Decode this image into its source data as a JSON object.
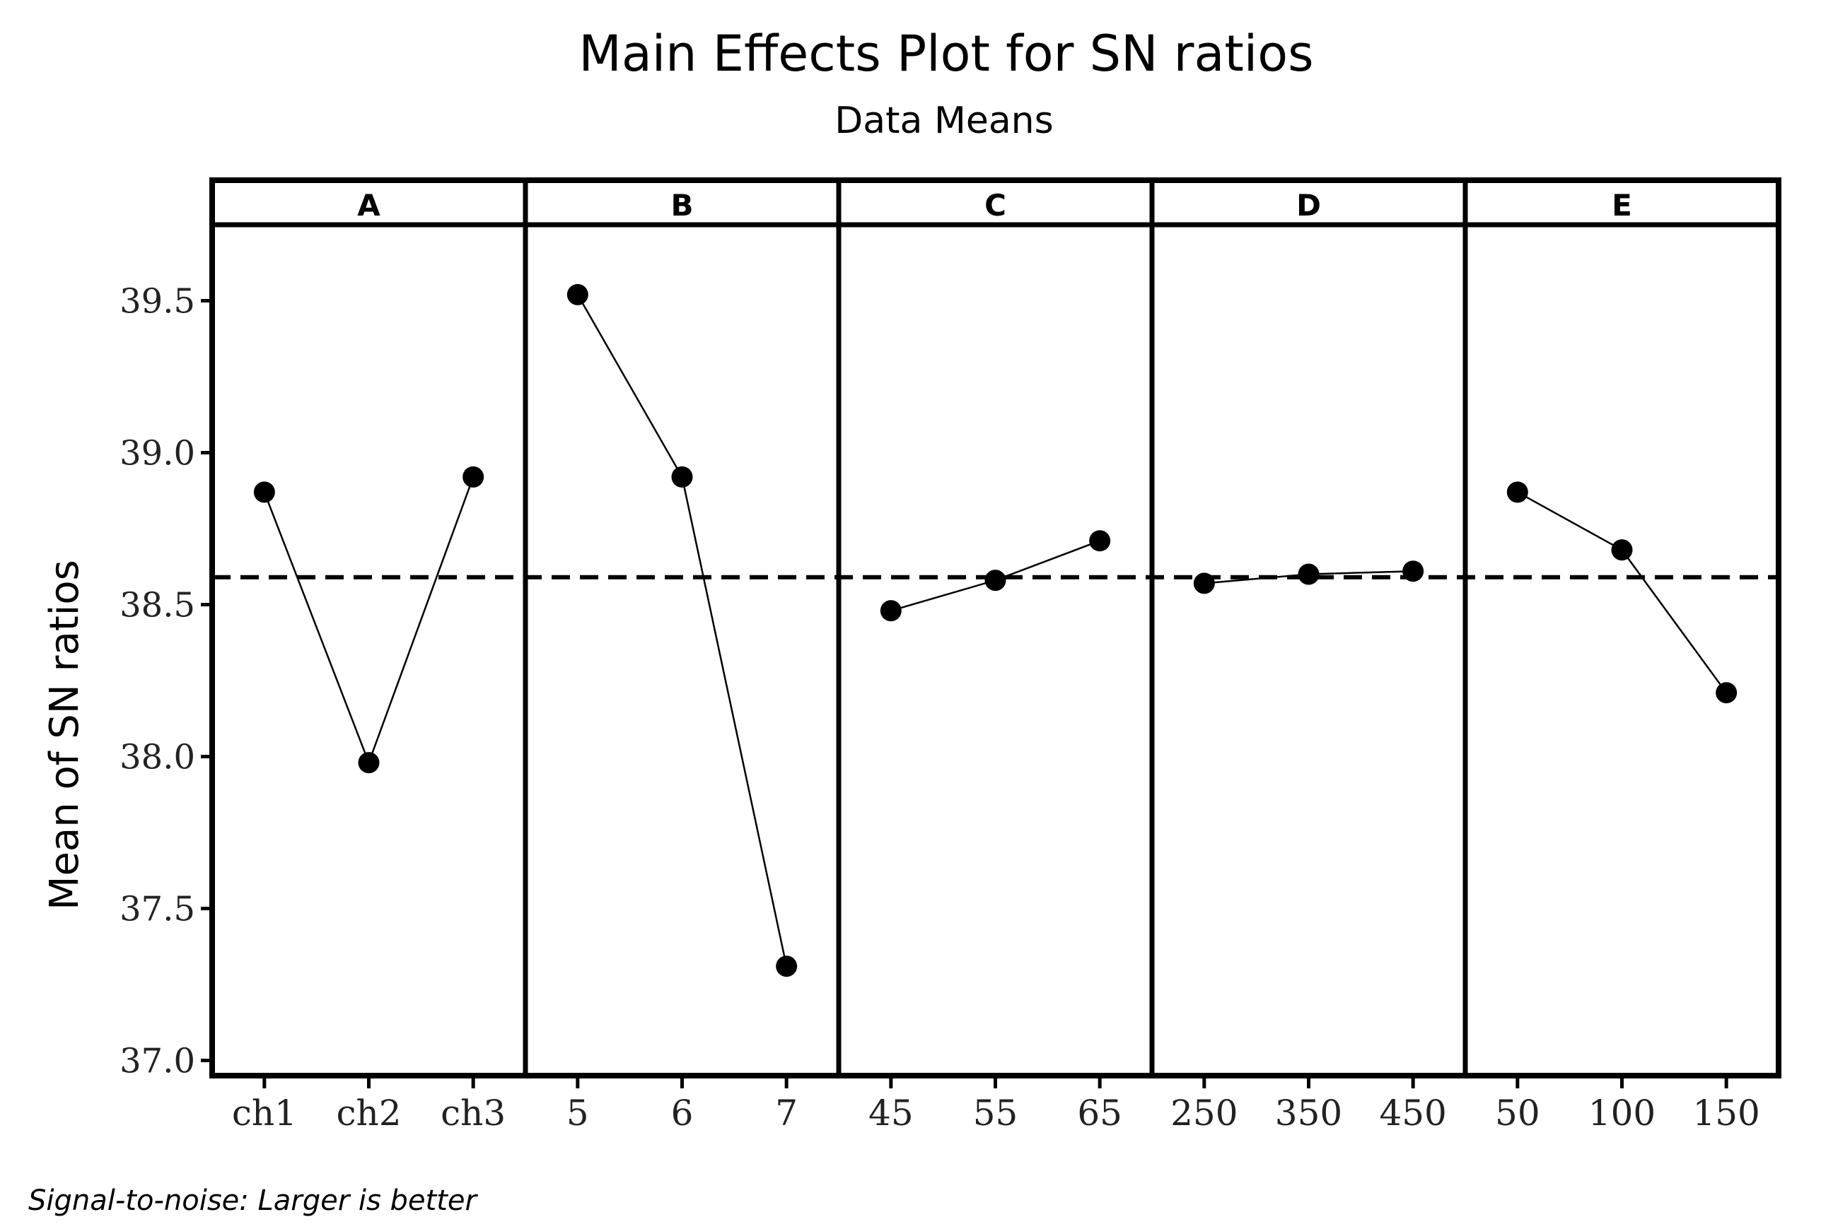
{
  "chart_data": {
    "type": "line",
    "title": "Main Effects Plot for SN ratios",
    "subtitle": "Data Means",
    "ylabel": "Mean of SN ratios",
    "ylim": [
      36.95,
      39.75
    ],
    "yticks": [
      "37.0",
      "37.5",
      "38.0",
      "38.5",
      "39.0",
      "39.5"
    ],
    "ytick_values": [
      37.0,
      37.5,
      38.0,
      38.5,
      39.0,
      39.5
    ],
    "reference_line": {
      "value": 38.59,
      "style": "dashed"
    },
    "footnote": "Signal-to-noise: Larger is better",
    "panels": [
      {
        "name": "A",
        "levels": [
          "ch1",
          "ch2",
          "ch3"
        ],
        "values": [
          38.87,
          37.98,
          38.92
        ]
      },
      {
        "name": "B",
        "levels": [
          "5",
          "6",
          "7"
        ],
        "values": [
          39.52,
          38.92,
          37.31
        ]
      },
      {
        "name": "C",
        "levels": [
          "45",
          "55",
          "65"
        ],
        "values": [
          38.48,
          38.58,
          38.71
        ]
      },
      {
        "name": "D",
        "levels": [
          "250",
          "350",
          "450"
        ],
        "values": [
          38.57,
          38.6,
          38.61
        ]
      },
      {
        "name": "E",
        "levels": [
          "50",
          "100",
          "150"
        ],
        "values": [
          38.87,
          38.68,
          38.21
        ]
      }
    ]
  }
}
